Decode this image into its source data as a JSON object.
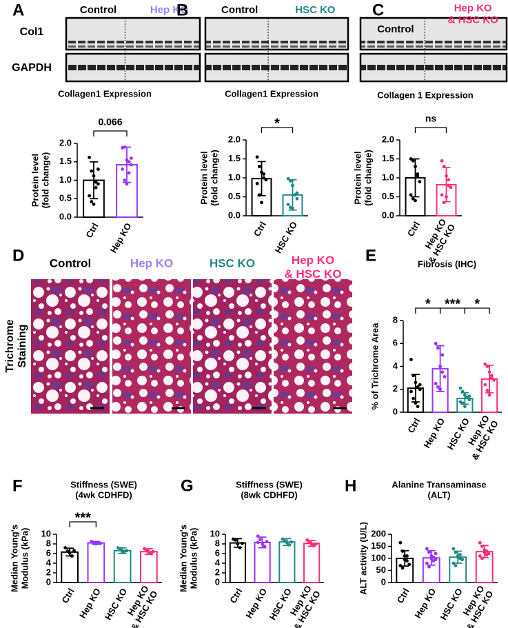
{
  "blots": [
    {
      "panel": "A",
      "rows": [
        "Col1",
        "GAPDH"
      ],
      "groups": [
        {
          "label": "Control",
          "color": "#000000"
        },
        {
          "label": "Hep KO",
          "color": "#9b7fe6"
        }
      ]
    },
    {
      "panel": "B",
      "groups": [
        {
          "label": "Control",
          "color": "#000000"
        },
        {
          "label": "HSC KO",
          "color": "#1f8a84"
        }
      ]
    },
    {
      "panel": "C",
      "groups": [
        {
          "label": "Control",
          "color": "#000000"
        },
        {
          "label": "Hep KO\n& HSC KO",
          "color": "#ff2d78"
        }
      ]
    }
  ],
  "histology": {
    "panel": "D",
    "side_label": "Trichrome\nStaining",
    "images": [
      {
        "label": "Control",
        "color": "#000000"
      },
      {
        "label": "Hep KO",
        "color": "#9b7fe6"
      },
      {
        "label": "HSC KO",
        "color": "#1f8a84"
      },
      {
        "label": "Hep KO\n& HSC KO",
        "color": "#ff2d78"
      }
    ]
  },
  "chart_data": [
    {
      "type": "bar",
      "title": "Collagen1 Expression",
      "ylabel": "Protein level\n(fold change)",
      "categories": [
        "Ctrl",
        "Hep KO"
      ],
      "colors": [
        "#000000",
        "#9933ff"
      ],
      "values": [
        1.0,
        1.42
      ],
      "errors": [
        0.5,
        0.48
      ],
      "points": [
        [
          1.62,
          1.25,
          1.12,
          0.95,
          0.9,
          0.58,
          0.42,
          0.35,
          0.8,
          1.3
        ],
        [
          1.88,
          1.9,
          1.55,
          1.5,
          1.42,
          1.3,
          1.0,
          0.9,
          1.2,
          1.6
        ]
      ],
      "ylim": [
        0,
        2
      ],
      "yticks": [
        {
          "value": 0,
          "label": "0.0"
        },
        0.5,
        {
          "value": 1,
          "label": "1.0"
        },
        1.5,
        {
          "value": 2,
          "label": "2.0"
        }
      ],
      "annotations": [
        {
          "text": "0.066",
          "between": [
            "Ctrl",
            "Hep KO"
          ]
        }
      ]
    },
    {
      "type": "bar",
      "title": "Collagen1 Expression",
      "ylabel": "Protein level\n(fold change)",
      "categories": [
        "Ctrl",
        "HSC KO"
      ],
      "colors": [
        "#000000",
        "#1f8a84"
      ],
      "values": [
        0.98,
        0.55
      ],
      "errors": [
        0.45,
        0.4
      ],
      "points": [
        [
          1.55,
          1.3,
          1.15,
          1.0,
          0.95,
          0.85,
          0.55,
          0.35,
          1.1
        ],
        [
          0.98,
          0.92,
          0.8,
          0.55,
          0.45,
          0.3,
          0.22,
          0.2,
          0.55,
          0.6
        ]
      ],
      "ylim": [
        0,
        2
      ],
      "yticks": [
        {
          "value": 0,
          "label": "0.0"
        },
        0.5,
        {
          "value": 1,
          "label": "1.0"
        },
        1.5,
        {
          "value": 2,
          "label": "2.0"
        }
      ],
      "annotations": [
        {
          "text": "*",
          "between": [
            "Ctrl",
            "HSC KO"
          ]
        }
      ]
    },
    {
      "type": "bar",
      "title": "Collagen 1 Expression",
      "ylabel": "Protein level\n(fold change)",
      "categories": [
        "Ctrl",
        "Hep KO\n& HSC KO"
      ],
      "colors": [
        "#000000",
        "#ff2d78"
      ],
      "values": [
        1.0,
        0.82
      ],
      "errors": [
        0.5,
        0.45
      ],
      "points": [
        [
          1.5,
          1.45,
          1.3,
          1.05,
          0.9,
          0.55,
          0.45,
          0.4,
          1.1
        ],
        [
          1.45,
          1.3,
          1.05,
          0.95,
          0.75,
          0.55,
          0.35,
          0.5,
          0.8
        ]
      ],
      "ylim": [
        0,
        2
      ],
      "yticks": [
        {
          "value": 0,
          "label": "0.0"
        },
        0.5,
        {
          "value": 1,
          "label": "1.0"
        },
        1.5,
        {
          "value": 2,
          "label": "2.0"
        }
      ],
      "annotations": [
        {
          "text": "ns",
          "between": [
            "Ctrl",
            "Hep KO\n& HSC KO"
          ]
        }
      ]
    },
    {
      "type": "bar",
      "panel": "E",
      "title": "Fibrosis (IHC)",
      "ylabel": "% of Trichrome Area",
      "categories": [
        "Ctrl",
        "Hep KO",
        "HSC KO",
        "Hep KO\n& HSC KO"
      ],
      "colors": [
        "#000000",
        "#9933ff",
        "#1f8a84",
        "#ff2d78"
      ],
      "values": [
        2.1,
        3.8,
        1.2,
        2.9
      ],
      "errors": [
        1.2,
        2.0,
        0.5,
        1.2
      ],
      "points": [
        [
          4.6,
          3.2,
          2.6,
          2.2,
          2.0,
          1.8,
          1.2,
          0.8,
          0.5,
          2.4
        ],
        [
          6.0,
          5.6,
          4.0,
          3.5,
          3.1,
          2.5,
          2.2,
          2.0,
          5.0
        ],
        [
          2.1,
          1.8,
          1.5,
          1.3,
          1.1,
          0.9,
          0.8,
          0.5,
          1.3,
          1.4
        ],
        [
          4.2,
          4.0,
          3.5,
          3.0,
          2.8,
          2.4,
          1.9,
          1.5,
          3.2
        ]
      ],
      "ylim": [
        0,
        8
      ],
      "yticks": [
        0,
        2,
        4,
        6,
        8
      ],
      "annotations": [
        {
          "text": "*",
          "between": [
            "Ctrl",
            "Hep KO"
          ]
        },
        {
          "text": "***",
          "between": [
            "Hep KO",
            "HSC KO"
          ]
        },
        {
          "text": "*",
          "between": [
            "HSC KO",
            "Hep KO\n& HSC KO"
          ]
        }
      ]
    },
    {
      "type": "bar",
      "panel": "F",
      "title": "Stiffness (SWE)\n(4wk CDHFD)",
      "ylabel": "Median Young's\nModulus (kPa)",
      "categories": [
        "Ctrl",
        "Hep KO",
        "HSC KO",
        "Hep KO\n& HSC KO"
      ],
      "colors": [
        "#000000",
        "#9933ff",
        "#1f8a84",
        "#ff2d78"
      ],
      "values": [
        6.3,
        8.2,
        6.6,
        6.4
      ],
      "errors": [
        0.8,
        0.3,
        0.6,
        0.6
      ],
      "points": [
        [
          7.2,
          6.5,
          6.1,
          5.5,
          6.6
        ],
        [
          8.5,
          8.2,
          8.0,
          8.3,
          8.1
        ],
        [
          7.2,
          6.8,
          6.3,
          6.5,
          6.6
        ],
        [
          7.0,
          6.6,
          6.2,
          6.0,
          6.4
        ]
      ],
      "ylim": [
        0,
        10
      ],
      "yticks": [
        0,
        2,
        4,
        6,
        8,
        10
      ],
      "annotations": [
        {
          "text": "***",
          "between": [
            "Ctrl",
            "Hep KO"
          ]
        }
      ]
    },
    {
      "type": "bar",
      "panel": "G",
      "title": "Stiffness (SWE)\n(8wk CDHFD)",
      "ylabel": "Median Young's\nModulus (kPa)",
      "categories": [
        "Ctrl",
        "Hep KO",
        "HSC KO",
        "Hep KO\n& HSC KO"
      ],
      "colors": [
        "#000000",
        "#9933ff",
        "#1f8a84",
        "#ff2d78"
      ],
      "values": [
        8.2,
        8.3,
        8.4,
        8.1
      ],
      "errors": [
        0.9,
        1.1,
        0.7,
        0.6
      ],
      "points": [
        [
          9.0,
          8.8,
          8.0,
          7.2,
          8.1
        ],
        [
          9.6,
          8.9,
          8.0,
          7.5,
          8.5,
          8.3
        ],
        [
          9.0,
          8.6,
          8.3,
          7.8,
          8.4
        ],
        [
          8.8,
          8.3,
          7.9,
          7.6,
          8.0
        ]
      ],
      "ylim": [
        0,
        10
      ],
      "yticks": [
        0,
        2,
        4,
        6,
        8,
        10
      ]
    },
    {
      "type": "bar",
      "panel": "H",
      "title": "Alanine Transaminase\n(ALT)",
      "ylabel": "ALT activity (U/L)",
      "categories": [
        "Ctrl",
        "Hep KO",
        "HSC KO",
        "Hep KO\n& HSC KO"
      ],
      "colors": [
        "#000000",
        "#9933ff",
        "#1f8a84",
        "#ff2d78"
      ],
      "values": [
        100,
        102,
        105,
        128
      ],
      "errors": [
        32,
        30,
        25,
        25
      ],
      "points": [
        [
          165,
          130,
          110,
          90,
          75,
          70,
          60,
          95,
          110
        ],
        [
          140,
          125,
          110,
          105,
          95,
          80,
          65,
          100,
          90,
          120
        ],
        [
          140,
          125,
          110,
          100,
          95,
          80,
          70,
          105,
          115
        ],
        [
          165,
          150,
          135,
          130,
          120,
          110,
          100,
          125,
          115
        ]
      ],
      "ylim": [
        0,
        200
      ],
      "yticks": [
        0,
        50,
        100,
        150,
        200
      ]
    }
  ]
}
